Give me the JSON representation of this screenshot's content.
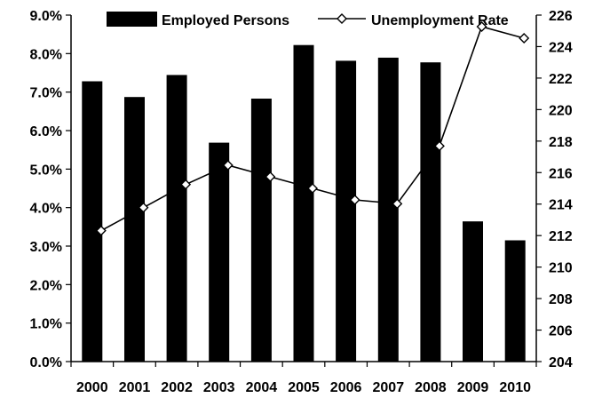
{
  "chart_data": {
    "type": "bar",
    "title": "",
    "categories": [
      "2000",
      "2001",
      "2002",
      "2003",
      "2004",
      "2005",
      "2006",
      "2007",
      "2008",
      "2009",
      "2010"
    ],
    "series": [
      {
        "name": "Employed Persons",
        "type": "bar",
        "axis": "right",
        "color": "#000000",
        "values": [
          221.8,
          220.8,
          222.2,
          217.9,
          220.7,
          224.1,
          223.1,
          223.3,
          223.0,
          212.9,
          211.7
        ]
      },
      {
        "name": "Unemployment Rate",
        "type": "line",
        "axis": "left",
        "color": "#000000",
        "marker": "diamond",
        "values": [
          3.4,
          4.0,
          4.6,
          5.1,
          4.8,
          4.5,
          4.2,
          4.1,
          5.6,
          8.7,
          8.4
        ]
      }
    ],
    "y_left": {
      "min": 0,
      "max": 9,
      "step": 1,
      "tick_labels": [
        "0.0%",
        "1.0%",
        "2.0%",
        "3.0%",
        "4.0%",
        "5.0%",
        "6.0%",
        "7.0%",
        "8.0%",
        "9.0%"
      ]
    },
    "y_right": {
      "min": 204,
      "max": 226,
      "step": 2,
      "tick_labels": [
        "204",
        "206",
        "208",
        "210",
        "212",
        "214",
        "216",
        "218",
        "220",
        "222",
        "224",
        "226"
      ]
    },
    "legend": {
      "position": "top",
      "items": [
        "Employed Persons",
        "Unemployment Rate"
      ]
    },
    "grid": false
  }
}
